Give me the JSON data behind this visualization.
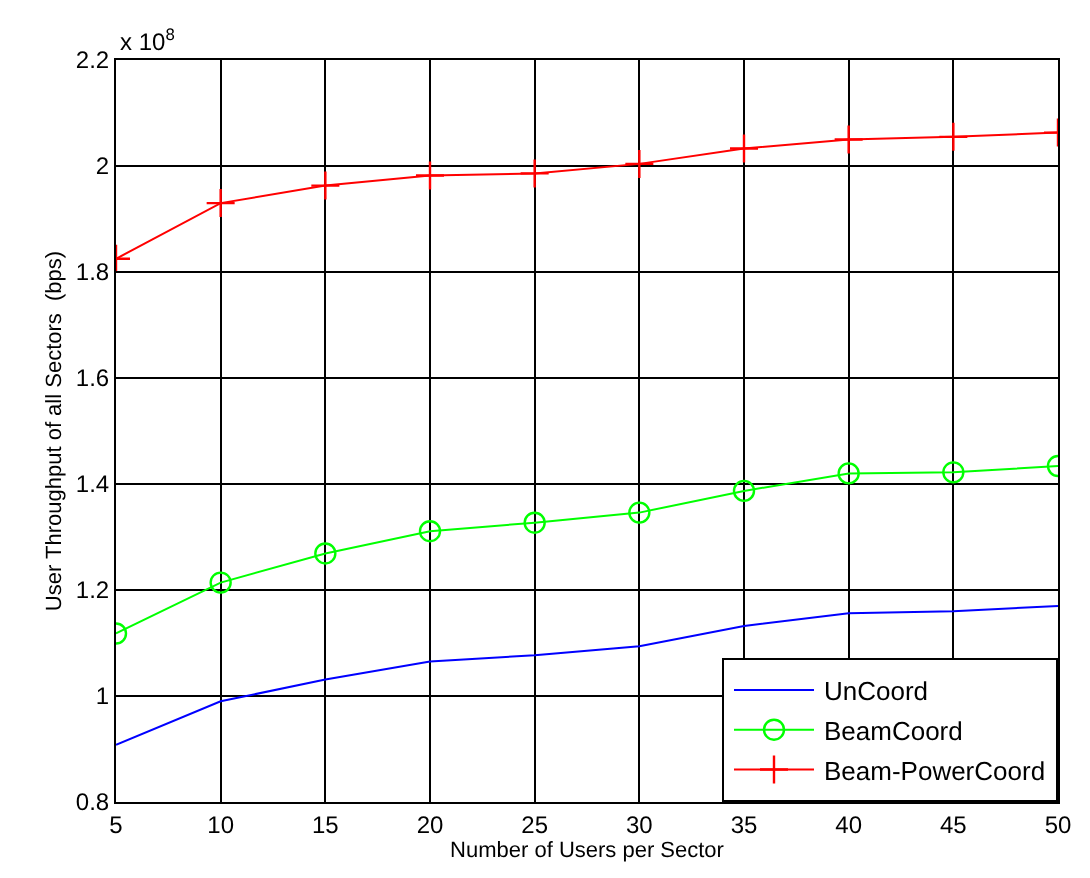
{
  "chart_data": {
    "type": "line",
    "xlabel": "Number of Users per Sector",
    "ylabel": "User Throughput of all Sectors  (bps)",
    "x": [
      5,
      10,
      15,
      20,
      25,
      30,
      35,
      40,
      45,
      50
    ],
    "series": [
      {
        "name": "UnCoord",
        "color": "#0000ff",
        "marker": "none",
        "values": [
          0.908,
          0.99,
          1.031,
          1.065,
          1.077,
          1.094,
          1.132,
          1.156,
          1.16,
          1.17
        ]
      },
      {
        "name": "BeamCoord",
        "color": "#00ff00",
        "marker": "circle",
        "values": [
          1.118,
          1.214,
          1.269,
          1.311,
          1.327,
          1.346,
          1.387,
          1.42,
          1.422,
          1.434
        ]
      },
      {
        "name": "Beam-PowerCoord",
        "color": "#ff0000",
        "marker": "cross",
        "values": [
          1.825,
          1.93,
          1.963,
          1.982,
          1.986,
          2.004,
          2.033,
          2.05,
          2.055,
          2.063
        ]
      }
    ],
    "xlim": [
      5,
      50
    ],
    "xticks": [
      5,
      10,
      15,
      20,
      25,
      30,
      35,
      40,
      45,
      50
    ],
    "ylim": [
      0.8,
      2.2
    ],
    "yticks": [
      0.8,
      1,
      1.2,
      1.4,
      1.6,
      1.8,
      2,
      2.2
    ],
    "annotations": [
      "x 10$^{8}$"
    ],
    "grid": true,
    "legend": "bottom right",
    "line_style": "solid"
  }
}
